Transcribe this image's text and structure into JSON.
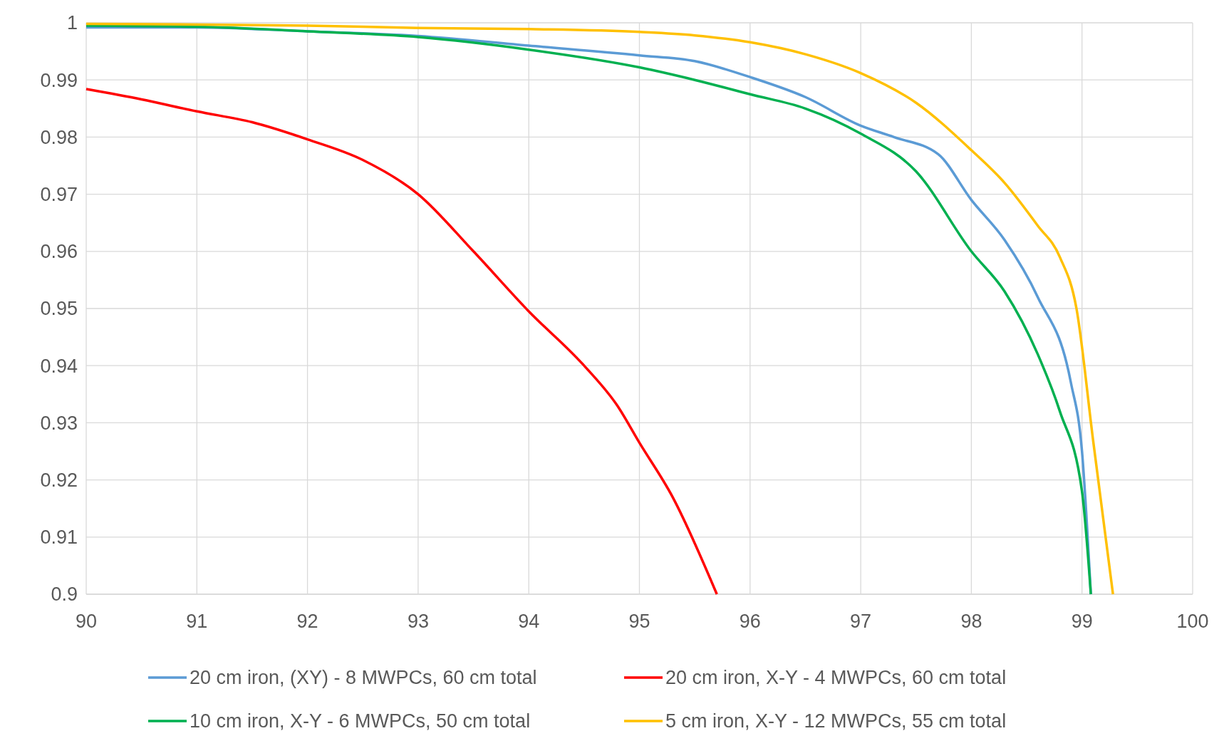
{
  "chart_data": {
    "type": "line",
    "xlim": [
      90,
      100
    ],
    "xticks": [
      90,
      91,
      92,
      93,
      94,
      95,
      96,
      97,
      98,
      99,
      100
    ],
    "ylim": [
      0.9,
      1
    ],
    "yticks": [
      0.9,
      0.91,
      0.92,
      0.93,
      0.94,
      0.95,
      0.96,
      0.97,
      0.98,
      0.99,
      1
    ],
    "grid": true,
    "legend": "bottom",
    "marker": "none",
    "line_style": "solid",
    "series": [
      {
        "name": "20 cm iron, (XY) - 8 MWPCs, 60 cm total",
        "color": "#5b9bd5",
        "x": [
          90,
          91,
          92,
          93,
          94,
          95,
          95.5,
          96,
          96.5,
          97,
          97.3,
          97.7,
          98,
          98.3,
          98.6,
          98.9,
          99,
          99.08
        ],
        "values": [
          0.9992,
          0.9992,
          0.9985,
          0.9977,
          0.996,
          0.9943,
          0.9933,
          0.9905,
          0.987,
          0.982,
          0.98,
          0.977,
          0.969,
          0.962,
          0.952,
          0.937,
          0.925,
          0.9
        ]
      },
      {
        "name": "20 cm iron, X-Y - 4 MWPCs, 60 cm total",
        "color": "#ff0000",
        "x": [
          90,
          90.5,
          91,
          91.5,
          92,
          92.5,
          93,
          93.5,
          94,
          94.5,
          94.8,
          95,
          95.3,
          95.7
        ],
        "values": [
          0.9884,
          0.9866,
          0.9845,
          0.9826,
          0.9796,
          0.976,
          0.97,
          0.96,
          0.9495,
          0.94,
          0.933,
          0.9265,
          0.917,
          0.9
        ]
      },
      {
        "name": "10 cm iron, X-Y - 6 MWPCs, 50 cm total",
        "color": "#00b050",
        "x": [
          90,
          91,
          92,
          93,
          94,
          95,
          95.5,
          96,
          96.5,
          97,
          97.5,
          98,
          98.3,
          98.6,
          98.8,
          99,
          99.08
        ],
        "values": [
          0.9995,
          0.9993,
          0.9985,
          0.9975,
          0.9953,
          0.9922,
          0.99,
          0.9875,
          0.985,
          0.9806,
          0.974,
          0.96,
          0.953,
          0.942,
          0.932,
          0.918,
          0.9
        ]
      },
      {
        "name": "5 cm iron, X-Y - 12 MWPCs, 55 cm total",
        "color": "#ffc000",
        "x": [
          90,
          91,
          92,
          93,
          94,
          95,
          95.5,
          96,
          96.5,
          97,
          97.5,
          98,
          98.3,
          98.6,
          98.8,
          98.95,
          99.1,
          99.28
        ],
        "values": [
          0.9998,
          0.9997,
          0.9995,
          0.9991,
          0.9989,
          0.9984,
          0.9978,
          0.9966,
          0.9945,
          0.9912,
          0.986,
          0.9777,
          0.972,
          0.9645,
          0.959,
          0.95,
          0.927,
          0.9
        ]
      }
    ]
  }
}
